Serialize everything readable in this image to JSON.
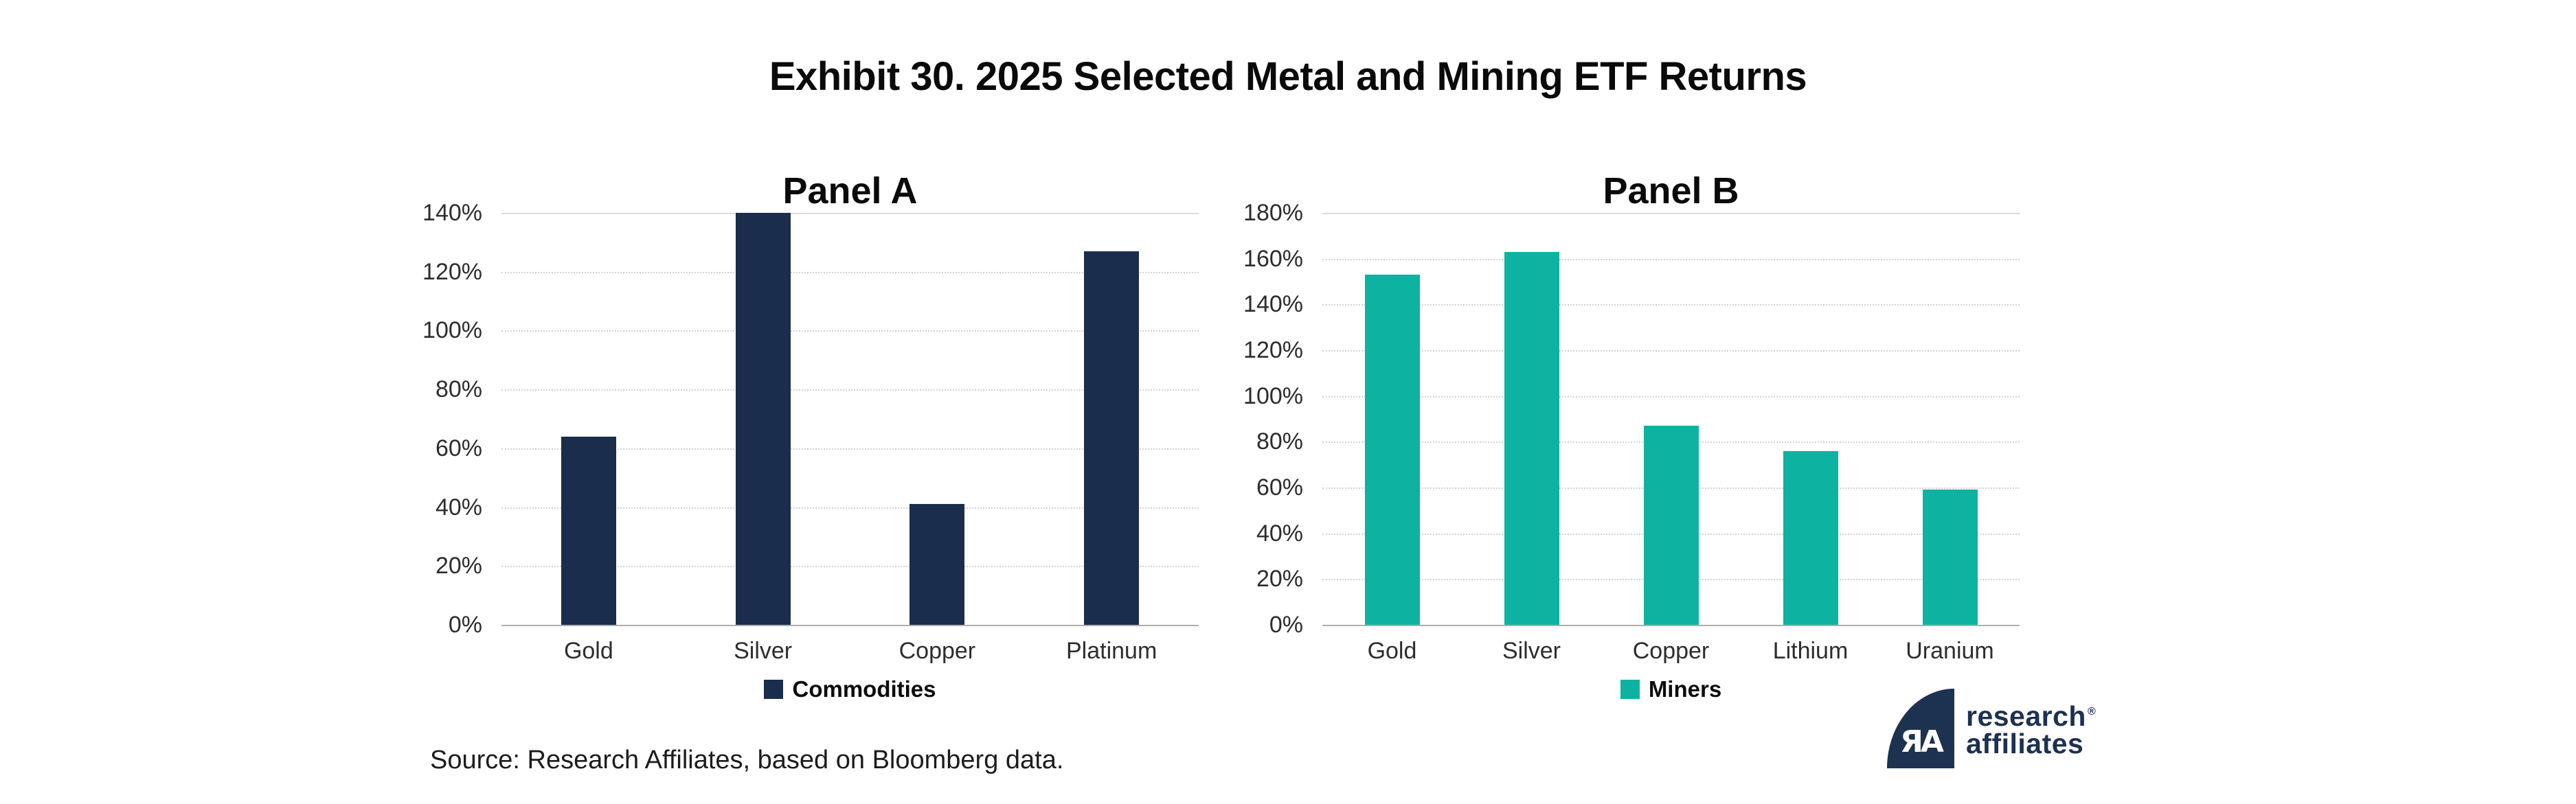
{
  "title": "Exhibit 30. 2025 Selected Metal and Mining ETF Returns",
  "source": "Source: Research Affiliates, based on Bloomberg data.",
  "logo": {
    "monogram": "ЯA",
    "line1": "research",
    "line2": "affiliates",
    "reg_mark": "®",
    "color": "#1d3150"
  },
  "colors": {
    "commodities_navy": "#1b2d4d",
    "miners_teal": "#0db3a0",
    "gridline": "#d2d2d2",
    "axis_line": "#aeaeae"
  },
  "chart_data": [
    {
      "type": "bar",
      "title": "Panel A",
      "categories": [
        "Gold",
        "Silver",
        "Copper",
        "Platinum"
      ],
      "series": [
        {
          "name": "Commodities",
          "color": "#1b2d4d",
          "values": [
            64,
            140,
            41,
            127
          ]
        }
      ],
      "xlabel": "",
      "ylabel": "",
      "ylim": [
        0,
        140
      ],
      "ytick_step": 20,
      "ytick_format": "percent",
      "grid": true,
      "legend_position": "bottom"
    },
    {
      "type": "bar",
      "title": "Panel B",
      "categories": [
        "Gold",
        "Silver",
        "Copper",
        "Lithium",
        "Uranium"
      ],
      "series": [
        {
          "name": "Miners",
          "color": "#0db3a0",
          "values": [
            153,
            163,
            87,
            76,
            59
          ]
        }
      ],
      "xlabel": "",
      "ylabel": "",
      "ylim": [
        0,
        180
      ],
      "ytick_step": 20,
      "ytick_format": "percent",
      "grid": true,
      "legend_position": "bottom"
    }
  ]
}
